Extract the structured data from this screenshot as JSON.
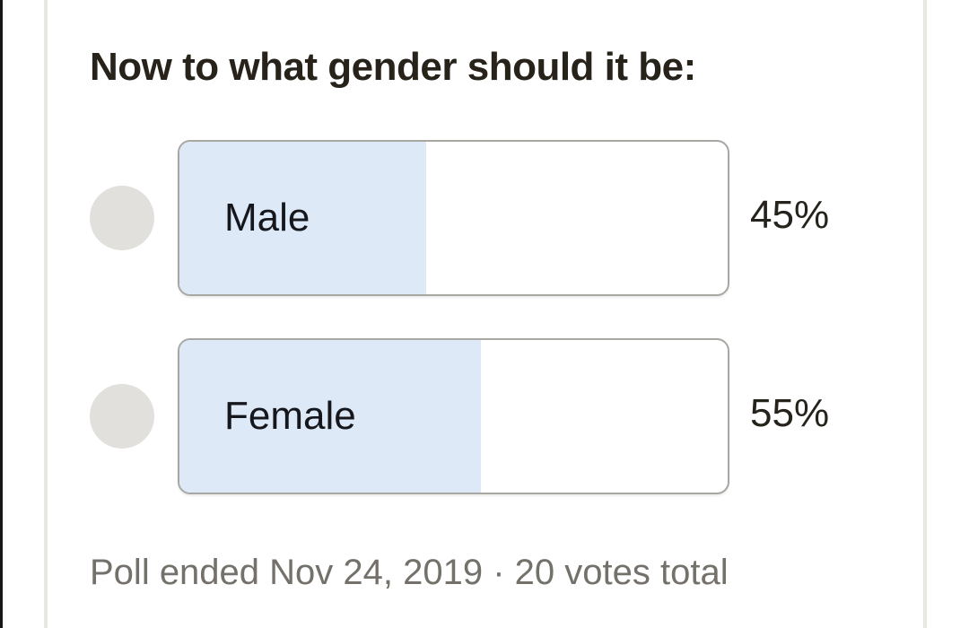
{
  "poll": {
    "title": "Now to what gender should it be:",
    "options": [
      {
        "label": "Male",
        "percent_label": "45%",
        "value": 45
      },
      {
        "label": "Female",
        "percent_label": "55%",
        "value": 55
      }
    ],
    "footer": "Poll ended Nov 24, 2019 · 20 votes total",
    "votes_total": "20",
    "end_date": "Nov 24, 2019"
  },
  "colors": {
    "fill_blue": "#dde9f7",
    "bar_border": "#a9a7a2",
    "radio_gray": "#e2e0dc",
    "divider": "#e9e7e1",
    "edge_strip": "#161616",
    "title_text": "#27231b",
    "footer_text": "#74706a"
  }
}
